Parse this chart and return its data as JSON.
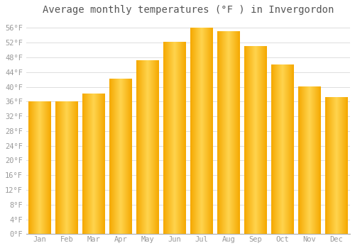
{
  "months": [
    "Jan",
    "Feb",
    "Mar",
    "Apr",
    "May",
    "Jun",
    "Jul",
    "Aug",
    "Sep",
    "Oct",
    "Nov",
    "Dec"
  ],
  "values": [
    36,
    36,
    38,
    42,
    47,
    52,
    56,
    55,
    51,
    46,
    40,
    37
  ],
  "title": "Average monthly temperatures (°F ) in Invergordon",
  "ylim": [
    0,
    58
  ],
  "yticks": [
    0,
    4,
    8,
    12,
    16,
    20,
    24,
    28,
    32,
    36,
    40,
    44,
    48,
    52,
    56
  ],
  "bar_color_center": "#FFD44E",
  "bar_color_edge": "#F5A800",
  "background_color": "#FFFFFF",
  "plot_bg_color": "#FFFFFF",
  "grid_color": "#DDDDDD",
  "title_fontsize": 10,
  "tick_fontsize": 7.5,
  "tick_color": "#999999",
  "title_color": "#555555"
}
